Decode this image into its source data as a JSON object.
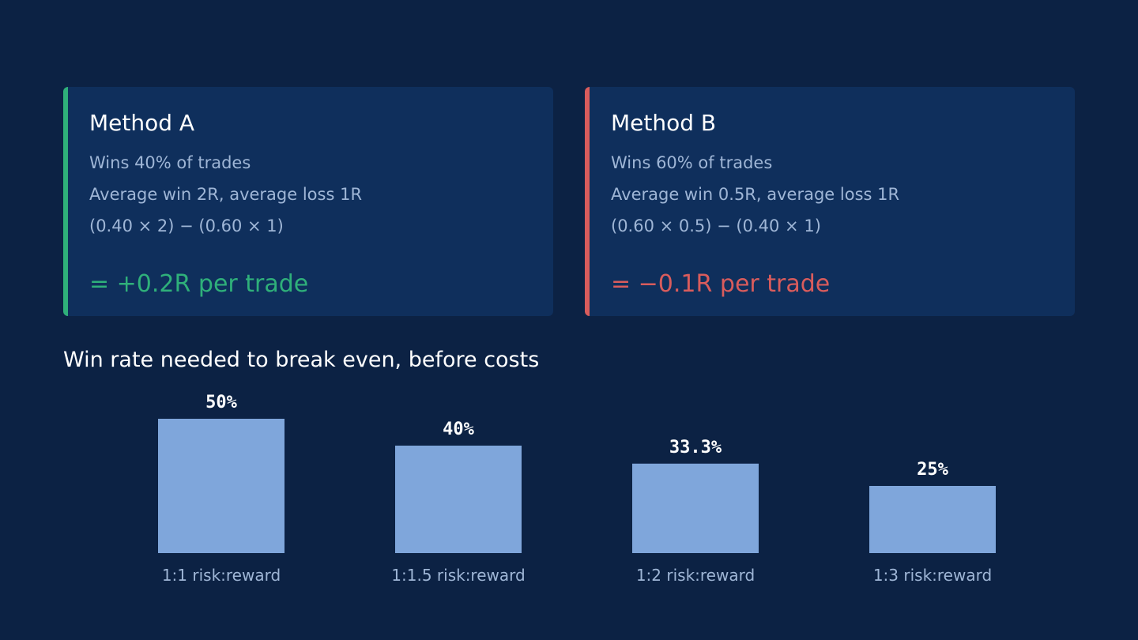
{
  "colors": {
    "background": "#0c2244",
    "card_background": "#0f2f5c",
    "positive": "#2fb07a",
    "negative": "#d95c5c",
    "bar": "#7fa6db",
    "muted_text": "#9fb6d6"
  },
  "method_a": {
    "title": "Method A",
    "line1": "Wins 40% of trades",
    "line2": "Average win 2R, average loss 1R",
    "line3": "(0.40 × 2) − (0.60 × 1)",
    "result": "= +0.2R per trade"
  },
  "method_b": {
    "title": "Method B",
    "line1": "Wins 60% of trades",
    "line2": "Average win 0.5R, average loss 1R",
    "line3": "(0.60 × 0.5) − (0.40 × 1)",
    "result": "= −0.1R per trade"
  },
  "chart_data": {
    "type": "bar",
    "title": "Win rate needed to break even, before costs",
    "categories": [
      "1:1 risk:reward",
      "1:1.5 risk:reward",
      "1:2 risk:reward",
      "1:3 risk:reward"
    ],
    "values": [
      50,
      40,
      33.3,
      25
    ],
    "value_labels": [
      "50%",
      "40%",
      "33.3%",
      "25%"
    ],
    "xlabel": "",
    "ylabel": "",
    "ylim": [
      0,
      50
    ],
    "grid": false,
    "legend": "none"
  }
}
